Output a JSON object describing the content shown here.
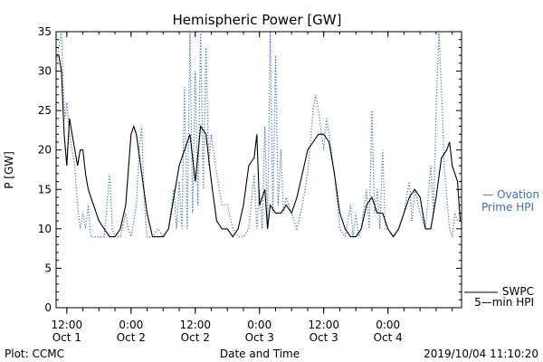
{
  "chart_data": {
    "type": "line",
    "title": "Hemispheric Power [GW]",
    "xlabel": "Date and Time",
    "ylabel": "P [GW]",
    "ylim": [
      0,
      35
    ],
    "y_ticks": [
      0,
      5,
      10,
      15,
      20,
      25,
      30,
      35
    ],
    "xlim": [
      "2019-10-01 10:00",
      "2019-10-04 13:45"
    ],
    "x_ticks": [
      {
        "time": "2019-10-01 12:00",
        "label1": "12:00",
        "label2": "Oct 1"
      },
      {
        "time": "2019-10-02 00:00",
        "label1": "0:00",
        "label2": "Oct 2"
      },
      {
        "time": "2019-10-02 12:00",
        "label1": "12:00",
        "label2": "Oct 2"
      },
      {
        "time": "2019-10-03 00:00",
        "label1": "0:00",
        "label2": "Oct 3"
      },
      {
        "time": "2019-10-03 12:00",
        "label1": "12:00",
        "label2": "Oct 3"
      },
      {
        "time": "2019-10-04 00:00",
        "label1": "0:00",
        "label2": "Oct 4"
      }
    ],
    "grid": false,
    "legend_position": "right",
    "series": [
      {
        "name": "Ovation Prime HPI",
        "legend_lines": [
          "— Ovation",
          "Prime HPI"
        ],
        "style": "dotted",
        "color": "#3a6fc4",
        "points": [
          [
            "2019-10-01 10:00",
            31
          ],
          [
            "2019-10-01 10:30",
            33
          ],
          [
            "2019-10-01 11:00",
            35
          ],
          [
            "2019-10-01 11:20",
            28
          ],
          [
            "2019-10-01 11:40",
            24
          ],
          [
            "2019-10-01 12:00",
            26
          ],
          [
            "2019-10-01 12:30",
            22
          ],
          [
            "2019-10-01 13:00",
            20
          ],
          [
            "2019-10-01 13:30",
            18
          ],
          [
            "2019-10-01 14:00",
            13
          ],
          [
            "2019-10-01 14:30",
            10
          ],
          [
            "2019-10-01 15:00",
            12
          ],
          [
            "2019-10-01 15:30",
            10
          ],
          [
            "2019-10-01 16:00",
            13
          ],
          [
            "2019-10-01 16:30",
            9
          ],
          [
            "2019-10-01 17:00",
            9
          ],
          [
            "2019-10-01 18:00",
            9
          ],
          [
            "2019-10-01 19:00",
            9
          ],
          [
            "2019-10-01 20:00",
            17
          ],
          [
            "2019-10-01 20:30",
            10
          ],
          [
            "2019-10-01 21:00",
            9
          ],
          [
            "2019-10-01 22:00",
            9
          ],
          [
            "2019-10-01 23:00",
            12
          ],
          [
            "2019-10-01 23:30",
            10
          ],
          [
            "2019-10-02 00:00",
            9
          ],
          [
            "2019-10-02 01:00",
            13
          ],
          [
            "2019-10-02 01:30",
            20
          ],
          [
            "2019-10-02 02:00",
            23
          ],
          [
            "2019-10-02 02:30",
            13
          ],
          [
            "2019-10-02 03:00",
            9
          ],
          [
            "2019-10-02 04:00",
            9
          ],
          [
            "2019-10-02 05:00",
            10
          ],
          [
            "2019-10-02 06:00",
            9
          ],
          [
            "2019-10-02 07:00",
            10
          ],
          [
            "2019-10-02 08:00",
            15
          ],
          [
            "2019-10-02 08:30",
            10
          ],
          [
            "2019-10-02 09:00",
            16
          ],
          [
            "2019-10-02 09:30",
            10
          ],
          [
            "2019-10-02 10:00",
            28
          ],
          [
            "2019-10-02 10:30",
            10
          ],
          [
            "2019-10-02 11:00",
            35
          ],
          [
            "2019-10-02 11:30",
            12
          ],
          [
            "2019-10-02 12:00",
            30
          ],
          [
            "2019-10-02 12:30",
            13
          ],
          [
            "2019-10-02 13:00",
            35
          ],
          [
            "2019-10-02 13:30",
            15
          ],
          [
            "2019-10-02 14:00",
            33
          ],
          [
            "2019-10-02 14:30",
            18
          ],
          [
            "2019-10-02 15:00",
            22
          ],
          [
            "2019-10-02 16:00",
            17
          ],
          [
            "2019-10-02 17:00",
            13
          ],
          [
            "2019-10-02 18:00",
            13
          ],
          [
            "2019-10-02 19:00",
            10
          ],
          [
            "2019-10-02 20:00",
            9
          ],
          [
            "2019-10-02 21:00",
            9
          ],
          [
            "2019-10-02 22:00",
            10
          ],
          [
            "2019-10-02 23:00",
            17
          ],
          [
            "2019-10-02 23:30",
            10
          ],
          [
            "2019-10-03 00:00",
            15
          ],
          [
            "2019-10-03 00:30",
            10
          ],
          [
            "2019-10-03 01:00",
            23
          ],
          [
            "2019-10-03 01:30",
            10
          ],
          [
            "2019-10-03 02:00",
            35
          ],
          [
            "2019-10-03 02:30",
            12
          ],
          [
            "2019-10-03 03:00",
            32
          ],
          [
            "2019-10-03 03:30",
            13
          ],
          [
            "2019-10-03 04:00",
            20
          ],
          [
            "2019-10-03 04:30",
            12
          ],
          [
            "2019-10-03 05:00",
            14
          ],
          [
            "2019-10-03 06:00",
            12
          ],
          [
            "2019-10-03 07:00",
            10
          ],
          [
            "2019-10-03 08:00",
            13
          ],
          [
            "2019-10-03 09:00",
            17
          ],
          [
            "2019-10-03 10:00",
            25
          ],
          [
            "2019-10-03 10:30",
            27
          ],
          [
            "2019-10-03 11:00",
            25
          ],
          [
            "2019-10-03 12:00",
            20
          ],
          [
            "2019-10-03 12:30",
            24
          ],
          [
            "2019-10-03 13:00",
            22
          ],
          [
            "2019-10-03 14:00",
            17
          ],
          [
            "2019-10-03 15:00",
            10
          ],
          [
            "2019-10-03 16:00",
            9
          ],
          [
            "2019-10-03 17:00",
            13
          ],
          [
            "2019-10-03 17:30",
            9
          ],
          [
            "2019-10-03 18:00",
            12
          ],
          [
            "2019-10-03 18:30",
            9
          ],
          [
            "2019-10-03 19:00",
            10
          ],
          [
            "2019-10-03 20:00",
            15
          ],
          [
            "2019-10-03 20:30",
            10
          ],
          [
            "2019-10-03 21:00",
            25
          ],
          [
            "2019-10-03 21:30",
            12
          ],
          [
            "2019-10-03 22:00",
            15
          ],
          [
            "2019-10-03 22:30",
            10
          ],
          [
            "2019-10-03 23:00",
            20
          ],
          [
            "2019-10-03 23:30",
            10
          ],
          [
            "2019-10-04 00:00",
            10
          ],
          [
            "2019-10-04 01:00",
            9
          ],
          [
            "2019-10-04 02:00",
            10
          ],
          [
            "2019-10-04 03:00",
            12
          ],
          [
            "2019-10-04 04:00",
            16
          ],
          [
            "2019-10-04 04:30",
            11
          ],
          [
            "2019-10-04 05:00",
            15
          ],
          [
            "2019-10-04 06:00",
            12
          ],
          [
            "2019-10-04 07:00",
            10
          ],
          [
            "2019-10-04 08:00",
            18
          ],
          [
            "2019-10-04 08:30",
            12
          ],
          [
            "2019-10-04 09:00",
            25
          ],
          [
            "2019-10-04 09:30",
            35
          ],
          [
            "2019-10-04 10:00",
            28
          ],
          [
            "2019-10-04 10:30",
            18
          ],
          [
            "2019-10-04 11:00",
            14
          ],
          [
            "2019-10-04 11:30",
            10
          ],
          [
            "2019-10-04 12:00",
            9
          ],
          [
            "2019-10-04 12:30",
            12
          ],
          [
            "2019-10-04 13:00",
            11
          ]
        ]
      },
      {
        "name": "SWPC 5-min HPI",
        "legend_lines": [
          "SWPC",
          "5—min HPI"
        ],
        "style": "solid",
        "color": "#000000",
        "points": [
          [
            "2019-10-01 10:00",
            32
          ],
          [
            "2019-10-01 10:30",
            32
          ],
          [
            "2019-10-01 11:00",
            30
          ],
          [
            "2019-10-01 11:30",
            22
          ],
          [
            "2019-10-01 12:00",
            18
          ],
          [
            "2019-10-01 12:30",
            24
          ],
          [
            "2019-10-01 13:00",
            22
          ],
          [
            "2019-10-01 13:30",
            20
          ],
          [
            "2019-10-01 14:00",
            18
          ],
          [
            "2019-10-01 14:30",
            20
          ],
          [
            "2019-10-01 15:00",
            20
          ],
          [
            "2019-10-01 15:30",
            17
          ],
          [
            "2019-10-01 16:00",
            15
          ],
          [
            "2019-10-01 17:00",
            13
          ],
          [
            "2019-10-01 18:00",
            11
          ],
          [
            "2019-10-01 19:00",
            10
          ],
          [
            "2019-10-01 20:00",
            9
          ],
          [
            "2019-10-01 21:00",
            9
          ],
          [
            "2019-10-01 22:00",
            10
          ],
          [
            "2019-10-01 23:00",
            13
          ],
          [
            "2019-10-02 00:00",
            22
          ],
          [
            "2019-10-02 00:30",
            23
          ],
          [
            "2019-10-02 01:00",
            22
          ],
          [
            "2019-10-02 02:00",
            17
          ],
          [
            "2019-10-02 03:00",
            12
          ],
          [
            "2019-10-02 04:00",
            9
          ],
          [
            "2019-10-02 05:00",
            9
          ],
          [
            "2019-10-02 06:00",
            9
          ],
          [
            "2019-10-02 07:00",
            10
          ],
          [
            "2019-10-02 08:00",
            14
          ],
          [
            "2019-10-02 09:00",
            18
          ],
          [
            "2019-10-02 10:00",
            20
          ],
          [
            "2019-10-02 11:00",
            22
          ],
          [
            "2019-10-02 12:00",
            16
          ],
          [
            "2019-10-02 13:00",
            23
          ],
          [
            "2019-10-02 14:00",
            22
          ],
          [
            "2019-10-02 15:00",
            16
          ],
          [
            "2019-10-02 16:00",
            11
          ],
          [
            "2019-10-02 17:00",
            10
          ],
          [
            "2019-10-02 18:00",
            10
          ],
          [
            "2019-10-02 19:00",
            9
          ],
          [
            "2019-10-02 20:00",
            10
          ],
          [
            "2019-10-02 21:00",
            13
          ],
          [
            "2019-10-02 22:00",
            18
          ],
          [
            "2019-10-02 23:00",
            19
          ],
          [
            "2019-10-02 23:30",
            22
          ],
          [
            "2019-10-03 00:00",
            13
          ],
          [
            "2019-10-03 01:00",
            15
          ],
          [
            "2019-10-03 01:30",
            10
          ],
          [
            "2019-10-03 02:00",
            13
          ],
          [
            "2019-10-03 03:00",
            12
          ],
          [
            "2019-10-03 04:00",
            12
          ],
          [
            "2019-10-03 05:00",
            13
          ],
          [
            "2019-10-03 06:00",
            12
          ],
          [
            "2019-10-03 07:00",
            14
          ],
          [
            "2019-10-03 08:00",
            17
          ],
          [
            "2019-10-03 09:00",
            20
          ],
          [
            "2019-10-03 10:00",
            21
          ],
          [
            "2019-10-03 11:00",
            22
          ],
          [
            "2019-10-03 12:00",
            22
          ],
          [
            "2019-10-03 13:00",
            21
          ],
          [
            "2019-10-03 14:00",
            17
          ],
          [
            "2019-10-03 15:00",
            12
          ],
          [
            "2019-10-03 16:00",
            10
          ],
          [
            "2019-10-03 17:00",
            9
          ],
          [
            "2019-10-03 18:00",
            9
          ],
          [
            "2019-10-03 19:00",
            10
          ],
          [
            "2019-10-03 20:00",
            13
          ],
          [
            "2019-10-03 21:00",
            14
          ],
          [
            "2019-10-03 22:00",
            12
          ],
          [
            "2019-10-03 23:00",
            12
          ],
          [
            "2019-10-04 00:00",
            10
          ],
          [
            "2019-10-04 01:00",
            9
          ],
          [
            "2019-10-04 02:00",
            10
          ],
          [
            "2019-10-04 03:00",
            12
          ],
          [
            "2019-10-04 04:00",
            14
          ],
          [
            "2019-10-04 05:00",
            15
          ],
          [
            "2019-10-04 06:00",
            14
          ],
          [
            "2019-10-04 07:00",
            10
          ],
          [
            "2019-10-04 08:00",
            10
          ],
          [
            "2019-10-04 09:00",
            14
          ],
          [
            "2019-10-04 10:00",
            19
          ],
          [
            "2019-10-04 11:00",
            20
          ],
          [
            "2019-10-04 11:30",
            21
          ],
          [
            "2019-10-04 12:00",
            18
          ],
          [
            "2019-10-04 13:00",
            16
          ],
          [
            "2019-10-04 13:30",
            11
          ]
        ]
      }
    ]
  },
  "footer": {
    "plot_source": "Plot: CCMC",
    "timestamp": "2019/10/04 11:10:20"
  }
}
